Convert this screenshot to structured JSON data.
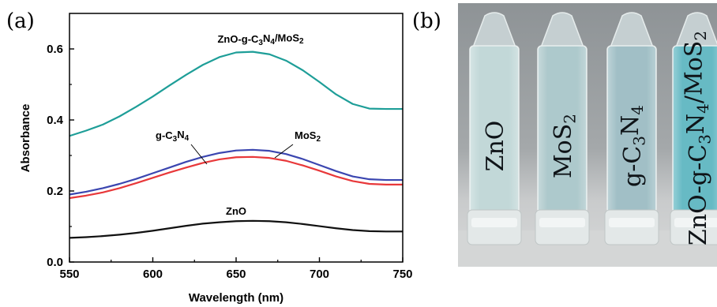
{
  "panels": {
    "a": {
      "letter": "(a)"
    },
    "b": {
      "letter": "(b)"
    }
  },
  "chart_data": {
    "type": "line",
    "title": "",
    "xlabel": "Wavelength (nm)",
    "ylabel": "Absorbance",
    "xlim": [
      550,
      750
    ],
    "ylim": [
      0.0,
      0.7
    ],
    "xticks": [
      550,
      600,
      650,
      700,
      750
    ],
    "yticks": [
      0.0,
      0.2,
      0.4,
      0.6
    ],
    "xtick_labels": [
      "550",
      "600",
      "650",
      "700",
      "750"
    ],
    "ytick_labels": [
      "0.0",
      "0.2",
      "0.4",
      "0.6"
    ],
    "grid": false,
    "legend": "none",
    "x": [
      550,
      560,
      570,
      580,
      590,
      600,
      610,
      620,
      630,
      640,
      650,
      660,
      670,
      680,
      690,
      700,
      710,
      720,
      730,
      740,
      750
    ],
    "series": [
      {
        "name": "ZnO-g-C3N4/MoS2",
        "label_parts": [
          {
            "t": "ZnO-g-C",
            "sub": false
          },
          {
            "t": "3",
            "sub": true
          },
          {
            "t": "N",
            "sub": false
          },
          {
            "t": "4",
            "sub": true
          },
          {
            "t": "/MoS",
            "sub": false
          },
          {
            "t": "2",
            "sub": true
          }
        ],
        "color": "#1e9e98",
        "values": [
          0.355,
          0.37,
          0.387,
          0.41,
          0.437,
          0.466,
          0.497,
          0.527,
          0.555,
          0.577,
          0.59,
          0.592,
          0.585,
          0.567,
          0.54,
          0.507,
          0.472,
          0.445,
          0.432,
          0.431,
          0.431
        ]
      },
      {
        "name": "g-C3N4",
        "label_parts": [
          {
            "t": "g-C",
            "sub": false
          },
          {
            "t": "3",
            "sub": true
          },
          {
            "t": "N",
            "sub": false
          },
          {
            "t": "4",
            "sub": true
          }
        ],
        "color": "#3b46b0",
        "values": [
          0.19,
          0.198,
          0.208,
          0.22,
          0.234,
          0.25,
          0.266,
          0.282,
          0.296,
          0.307,
          0.314,
          0.316,
          0.313,
          0.304,
          0.29,
          0.273,
          0.256,
          0.241,
          0.233,
          0.231,
          0.231
        ]
      },
      {
        "name": "MoS2",
        "label_parts": [
          {
            "t": "MoS",
            "sub": false
          },
          {
            "t": "2",
            "sub": true
          }
        ],
        "color": "#e8383a",
        "values": [
          0.18,
          0.187,
          0.196,
          0.208,
          0.222,
          0.237,
          0.252,
          0.266,
          0.279,
          0.289,
          0.295,
          0.296,
          0.293,
          0.285,
          0.272,
          0.257,
          0.241,
          0.228,
          0.22,
          0.218,
          0.218
        ]
      },
      {
        "name": "ZnO",
        "label_parts": [
          {
            "t": "ZnO",
            "sub": false
          }
        ],
        "color": "#111111",
        "values": [
          0.068,
          0.07,
          0.073,
          0.077,
          0.082,
          0.088,
          0.095,
          0.102,
          0.108,
          0.112,
          0.115,
          0.116,
          0.115,
          0.112,
          0.107,
          0.101,
          0.095,
          0.09,
          0.087,
          0.086,
          0.086
        ]
      }
    ]
  },
  "photo": {
    "vials": [
      {
        "name": "ZnO",
        "label_parts": [
          {
            "t": "ZnO",
            "sub": false
          }
        ],
        "liquid_color": "#bfd6d6"
      },
      {
        "name": "MoS2",
        "label_parts": [
          {
            "t": "MoS",
            "sub": false
          },
          {
            "t": "2",
            "sub": true
          }
        ],
        "liquid_color": "#a9c6c9"
      },
      {
        "name": "g-C3N4",
        "label_parts": [
          {
            "t": "g-C",
            "sub": false
          },
          {
            "t": "3",
            "sub": true
          },
          {
            "t": "N",
            "sub": false
          },
          {
            "t": "4",
            "sub": true
          }
        ],
        "liquid_color": "#9cbcc3"
      },
      {
        "name": "ZnO-g-C3N4/MoS2",
        "label_parts": [
          {
            "t": "ZnO-g-C",
            "sub": false
          },
          {
            "t": "3",
            "sub": true
          },
          {
            "t": "N",
            "sub": false
          },
          {
            "t": "4",
            "sub": true
          },
          {
            "t": "/MoS",
            "sub": false
          },
          {
            "t": "2",
            "sub": true
          }
        ],
        "liquid_color": "#5fb6c1"
      }
    ]
  }
}
